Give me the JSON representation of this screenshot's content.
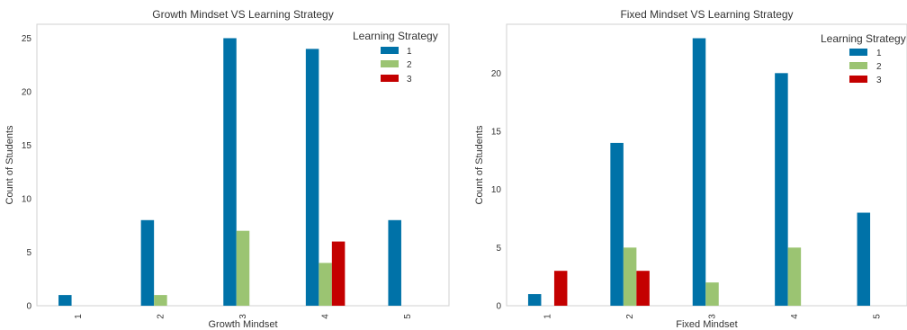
{
  "chart_data": [
    {
      "type": "bar",
      "title": "Growth Mindset VS Learning Strategy",
      "xlabel": "Growth Mindset",
      "ylabel": "Count of Students",
      "categories": [
        "1",
        "2",
        "3",
        "4",
        "5"
      ],
      "ylim": [
        0,
        26.3
      ],
      "yticks": [
        0,
        5,
        10,
        15,
        20,
        25
      ],
      "legend": {
        "title": "Learning Strategy",
        "placement": "top-right"
      },
      "grid": false,
      "series": [
        {
          "name": "1",
          "color": "#0072a8",
          "values": [
            1,
            8,
            25,
            24,
            8
          ]
        },
        {
          "name": "2",
          "color": "#9bc472",
          "values": [
            0,
            1,
            7,
            4,
            0
          ]
        },
        {
          "name": "3",
          "color": "#c40000",
          "values": [
            0,
            0,
            0,
            6,
            0
          ]
        }
      ]
    },
    {
      "type": "bar",
      "title": "Fixed Mindset VS Learning Strategy",
      "xlabel": "Fixed Mindset",
      "ylabel": "Count of Students",
      "categories": [
        "1",
        "2",
        "3",
        "4",
        "5"
      ],
      "ylim": [
        0,
        24.2
      ],
      "yticks": [
        0,
        5,
        10,
        15,
        20
      ],
      "legend": {
        "title": "Learning Strategy",
        "placement": "top-right"
      },
      "grid": false,
      "series": [
        {
          "name": "1",
          "color": "#0072a8",
          "values": [
            1,
            14,
            23,
            20,
            8
          ]
        },
        {
          "name": "2",
          "color": "#9bc472",
          "values": [
            0,
            5,
            2,
            5,
            0
          ]
        },
        {
          "name": "3",
          "color": "#c40000",
          "values": [
            3,
            3,
            0,
            0,
            0
          ]
        }
      ]
    }
  ]
}
